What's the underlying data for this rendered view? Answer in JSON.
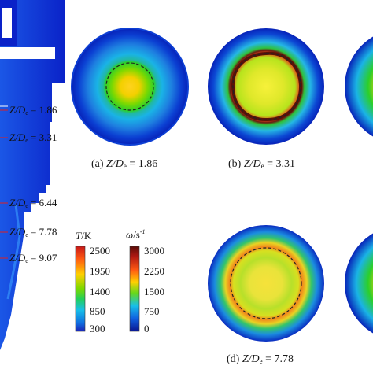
{
  "figure": {
    "panels": [
      {
        "id": "a",
        "caption_prefix": "(a)",
        "caption_value": "= 1.86"
      },
      {
        "id": "b",
        "caption_prefix": "(b)",
        "caption_value": "= 3.31"
      },
      {
        "id": "d",
        "caption_prefix": "(d)",
        "caption_value": "= 7.78"
      }
    ],
    "z_markers": [
      {
        "value": "= 1.86"
      },
      {
        "value": "= 3.31"
      },
      {
        "value": "= 6.44"
      },
      {
        "value": "= 7.78"
      },
      {
        "value": "= 9.07"
      }
    ],
    "z_symbol": "Z/D",
    "z_subscript": "e",
    "colorbar_T": {
      "title_var": "T",
      "title_unit": "/K",
      "ticks": [
        "2500",
        "1950",
        "1400",
        "850",
        "300"
      ]
    },
    "colorbar_omega": {
      "title_var": "ω",
      "title_unit": "/s",
      "title_exp": "-1",
      "ticks": [
        "3000",
        "2250",
        "1500",
        "750",
        "0"
      ]
    }
  }
}
